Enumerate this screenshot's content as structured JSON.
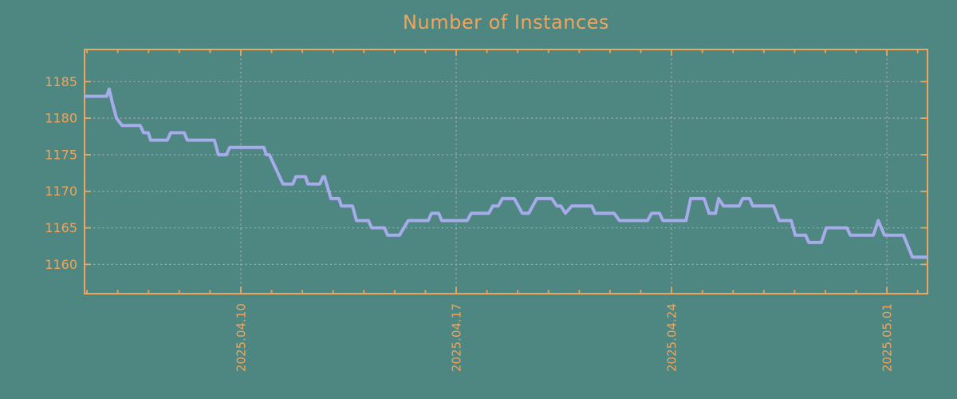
{
  "title": "Number of Instances",
  "colors": {
    "background": "#4e8682",
    "axis": "#efa55d",
    "grid": "#b7b7b7",
    "series": "#a6abe9"
  },
  "chart_data": {
    "type": "line",
    "title": "Number of Instances",
    "legend": false,
    "grid": true,
    "x_axis": {
      "label": "",
      "tick_labels": [
        "2025.04.10",
        "2025.04.17",
        "2025.04.24",
        "2025.05.01"
      ],
      "tick_positions_days": [
        0,
        7,
        14,
        21
      ],
      "days_relative_to": "2025.04.10",
      "range_days": [
        -5.08,
        22.32
      ],
      "minor_tick_interval_days": 1
    },
    "y_axis": {
      "label": "",
      "tick_labels": [
        "1160",
        "1165",
        "1170",
        "1175",
        "1180",
        "1185"
      ],
      "tick_values": [
        1160,
        1165,
        1170,
        1175,
        1180,
        1185
      ],
      "ylim": [
        1156,
        1189.4
      ]
    },
    "series": [
      {
        "name": "instances",
        "points": [
          [
            -5.08,
            1183
          ],
          [
            -4.36,
            1183
          ],
          [
            -4.28,
            1184
          ],
          [
            -4.17,
            1182
          ],
          [
            -4.04,
            1180
          ],
          [
            -3.86,
            1179
          ],
          [
            -3.27,
            1179
          ],
          [
            -3.16,
            1178
          ],
          [
            -3.01,
            1178
          ],
          [
            -2.93,
            1177
          ],
          [
            -2.39,
            1177
          ],
          [
            -2.28,
            1178
          ],
          [
            -1.84,
            1178
          ],
          [
            -1.74,
            1177
          ],
          [
            -0.86,
            1177
          ],
          [
            -0.73,
            1175
          ],
          [
            -0.47,
            1175
          ],
          [
            -0.36,
            1176
          ],
          [
            0.75,
            1176
          ],
          [
            0.83,
            1175
          ],
          [
            0.93,
            1175
          ],
          [
            1.37,
            1171
          ],
          [
            1.69,
            1171
          ],
          [
            1.79,
            1172
          ],
          [
            2.1,
            1172
          ],
          [
            2.18,
            1171
          ],
          [
            2.57,
            1171
          ],
          [
            2.67,
            1172
          ],
          [
            2.72,
            1172
          ],
          [
            2.93,
            1169
          ],
          [
            3.19,
            1169
          ],
          [
            3.27,
            1168
          ],
          [
            3.63,
            1168
          ],
          [
            3.76,
            1166
          ],
          [
            4.15,
            1166
          ],
          [
            4.25,
            1165
          ],
          [
            4.67,
            1165
          ],
          [
            4.77,
            1164
          ],
          [
            5.16,
            1164
          ],
          [
            5.44,
            1166
          ],
          [
            6.09,
            1166
          ],
          [
            6.2,
            1167
          ],
          [
            6.43,
            1167
          ],
          [
            6.53,
            1166
          ],
          [
            7.36,
            1166
          ],
          [
            7.49,
            1167
          ],
          [
            8.06,
            1167
          ],
          [
            8.19,
            1168
          ],
          [
            8.37,
            1168
          ],
          [
            8.5,
            1169
          ],
          [
            8.89,
            1169
          ],
          [
            9.15,
            1167
          ],
          [
            9.36,
            1167
          ],
          [
            9.62,
            1169
          ],
          [
            10.11,
            1169
          ],
          [
            10.27,
            1168
          ],
          [
            10.4,
            1168
          ],
          [
            10.55,
            1167
          ],
          [
            10.76,
            1168
          ],
          [
            11.41,
            1168
          ],
          [
            11.51,
            1167
          ],
          [
            12.13,
            1167
          ],
          [
            12.31,
            1166
          ],
          [
            13.22,
            1166
          ],
          [
            13.35,
            1167
          ],
          [
            13.61,
            1167
          ],
          [
            13.72,
            1166
          ],
          [
            14.47,
            1166
          ],
          [
            14.62,
            1169
          ],
          [
            15.06,
            1169
          ],
          [
            15.22,
            1167
          ],
          [
            15.43,
            1167
          ],
          [
            15.53,
            1169
          ],
          [
            15.69,
            1168
          ],
          [
            16.2,
            1168
          ],
          [
            16.31,
            1169
          ],
          [
            16.54,
            1169
          ],
          [
            16.64,
            1168
          ],
          [
            17.32,
            1168
          ],
          [
            17.5,
            1166
          ],
          [
            17.89,
            1166
          ],
          [
            18.02,
            1164
          ],
          [
            18.36,
            1164
          ],
          [
            18.46,
            1163
          ],
          [
            18.87,
            1163
          ],
          [
            19.03,
            1165
          ],
          [
            19.7,
            1165
          ],
          [
            19.81,
            1164
          ],
          [
            20.56,
            1164
          ],
          [
            20.72,
            1166
          ],
          [
            20.92,
            1164
          ],
          [
            21.54,
            1164
          ],
          [
            21.83,
            1161
          ],
          [
            22.32,
            1161
          ]
        ]
      }
    ]
  }
}
